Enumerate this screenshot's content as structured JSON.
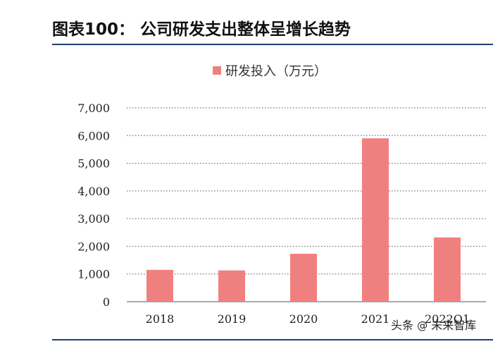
{
  "figure_title": "图表100： 公司研发支出整体呈增长趋势",
  "watermark": {
    "source": "头条",
    "at": "@",
    "account": "未来智库"
  },
  "chart_data": {
    "type": "bar",
    "title": "",
    "legend": [
      "研发投入（万元）"
    ],
    "legend_position": "top-center",
    "categories": [
      "2018",
      "2019",
      "2020",
      "2021",
      "2022Q1"
    ],
    "series": [
      {
        "name": "研发投入（万元）",
        "values": [
          1150,
          1130,
          1730,
          5900,
          2320
        ],
        "color": "#f08080"
      }
    ],
    "xlabel": "",
    "ylabel": "",
    "ylim": [
      0,
      7000
    ],
    "yticks": [
      0,
      1000,
      2000,
      3000,
      4000,
      5000,
      6000,
      7000
    ],
    "ytick_labels": [
      "0",
      "1,000",
      "2,000",
      "3,000",
      "4,000",
      "5,000",
      "6,000",
      "7,000"
    ],
    "grid": true,
    "grid_style": "dotted"
  }
}
